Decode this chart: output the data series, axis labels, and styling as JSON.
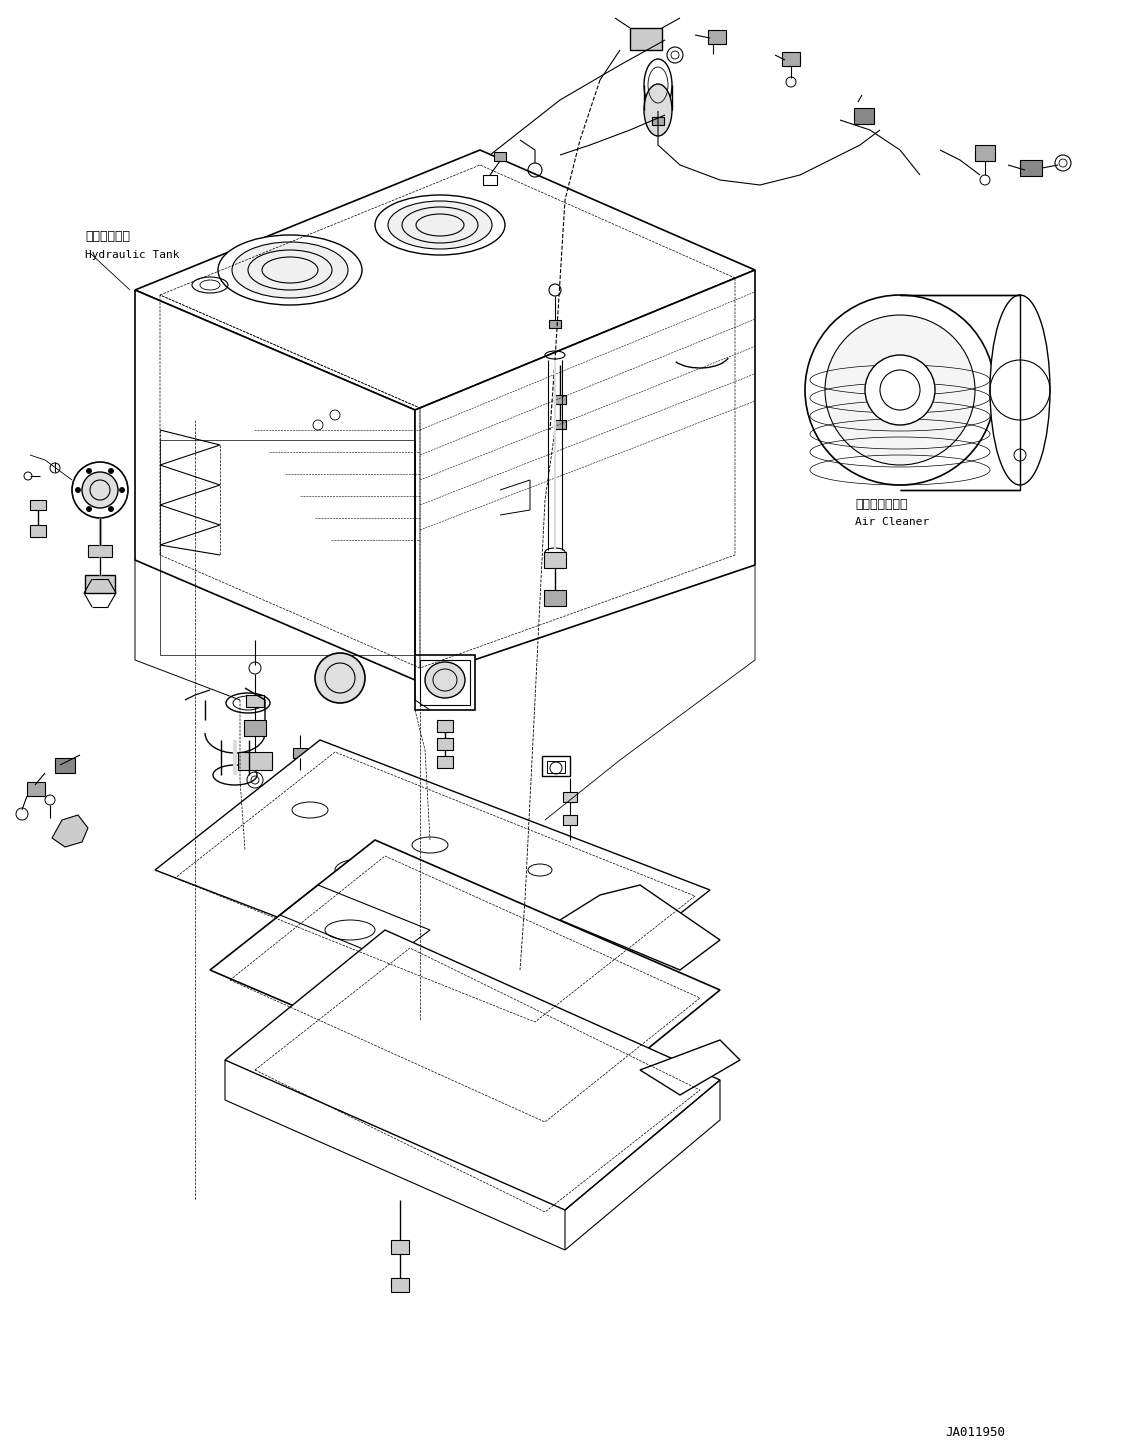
{
  "figure_width": 11.47,
  "figure_height": 14.53,
  "dpi": 100,
  "bg_color": "#ffffff",
  "lc": "#000000",
  "label_hydraulic_tank_ja": "作動油タンク",
  "label_hydraulic_tank_en": "Hydraulic Tank",
  "label_air_cleaner_ja": "エアークリーナ",
  "label_air_cleaner_en": "Air Cleaner",
  "code": "JA011950"
}
